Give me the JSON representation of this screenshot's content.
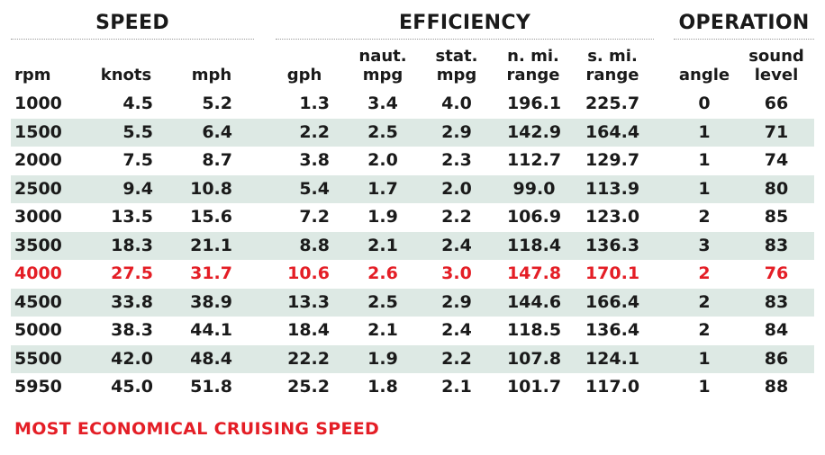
{
  "groups": {
    "speed": "SPEED",
    "efficiency": "EFFICIENCY",
    "operation": "OPERATION"
  },
  "columns": {
    "rpm": "rpm",
    "knots": "knots",
    "mph": "mph",
    "gph": "gph",
    "naut_mpg": "naut.\nmpg",
    "stat_mpg": "stat.\nmpg",
    "n_mi_range": "n. mi.\nrange",
    "s_mi_range": "s. mi.\nrange",
    "angle": "angle",
    "sound_level": "sound\nlevel"
  },
  "rows": [
    [
      "1000",
      "4.5",
      "5.2",
      "1.3",
      "3.4",
      "4.0",
      "196.1",
      "225.7",
      "0",
      "66"
    ],
    [
      "1500",
      "5.5",
      "6.4",
      "2.2",
      "2.5",
      "2.9",
      "142.9",
      "164.4",
      "1",
      "71"
    ],
    [
      "2000",
      "7.5",
      "8.7",
      "3.8",
      "2.0",
      "2.3",
      "112.7",
      "129.7",
      "1",
      "74"
    ],
    [
      "2500",
      "9.4",
      "10.8",
      "5.4",
      "1.7",
      "2.0",
      "99.0",
      "113.9",
      "1",
      "80"
    ],
    [
      "3000",
      "13.5",
      "15.6",
      "7.2",
      "1.9",
      "2.2",
      "106.9",
      "123.0",
      "2",
      "85"
    ],
    [
      "3500",
      "18.3",
      "21.1",
      "8.8",
      "2.1",
      "2.4",
      "118.4",
      "136.3",
      "3",
      "83"
    ],
    [
      "4000",
      "27.5",
      "31.7",
      "10.6",
      "2.6",
      "3.0",
      "147.8",
      "170.1",
      "2",
      "76"
    ],
    [
      "4500",
      "33.8",
      "38.9",
      "13.3",
      "2.5",
      "2.9",
      "144.6",
      "166.4",
      "2",
      "83"
    ],
    [
      "5000",
      "38.3",
      "44.1",
      "18.4",
      "2.1",
      "2.4",
      "118.5",
      "136.4",
      "2",
      "84"
    ],
    [
      "5500",
      "42.0",
      "48.4",
      "22.2",
      "1.9",
      "2.2",
      "107.8",
      "124.1",
      "1",
      "86"
    ],
    [
      "5950",
      "45.0",
      "51.8",
      "25.2",
      "1.8",
      "2.1",
      "101.7",
      "117.0",
      "1",
      "88"
    ]
  ],
  "highlight_row_index": 6,
  "footnote": "MOST ECONOMICAL CRUISING SPEED",
  "colors": {
    "highlight": "#e41e26",
    "row_shade": "#dde9e4",
    "text": "#1a1a1a"
  }
}
